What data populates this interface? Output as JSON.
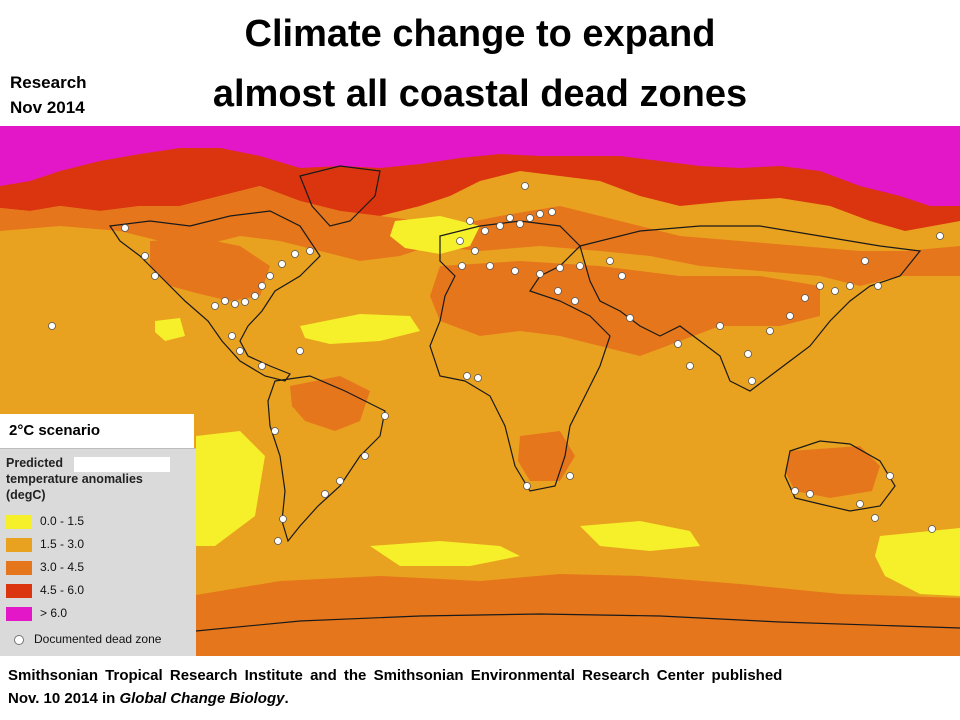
{
  "badge": {
    "line1": "Research",
    "line2": "Nov 2014"
  },
  "title": {
    "line1": "Climate change to expand",
    "line2": "almost all coastal dead zones"
  },
  "scenario_label": "2°C scenario",
  "legend": {
    "title_line1": "Predicted",
    "title_line2": "temperature anomalies",
    "title_line3": "(degC)",
    "items": [
      {
        "label": "0.0 - 1.5",
        "color": "#f5f02a"
      },
      {
        "label": "1.5 - 3.0",
        "color": "#e9a21f"
      },
      {
        "label": "3.0 - 4.5",
        "color": "#e6761c"
      },
      {
        "label": "4.5 - 6.0",
        "color": "#db3510"
      },
      {
        "label": "> 6.0",
        "color": "#e316c8"
      }
    ],
    "dead_zone_label": "Documented dead zone"
  },
  "footer": {
    "line1": "Smithsonian Tropical Research Institute and the Smithsonian Environmental Research Center published",
    "line2_prefix": "Nov. 10 2014 in ",
    "line2_journal": "Global Change Biology",
    "line2_suffix": "."
  }
}
